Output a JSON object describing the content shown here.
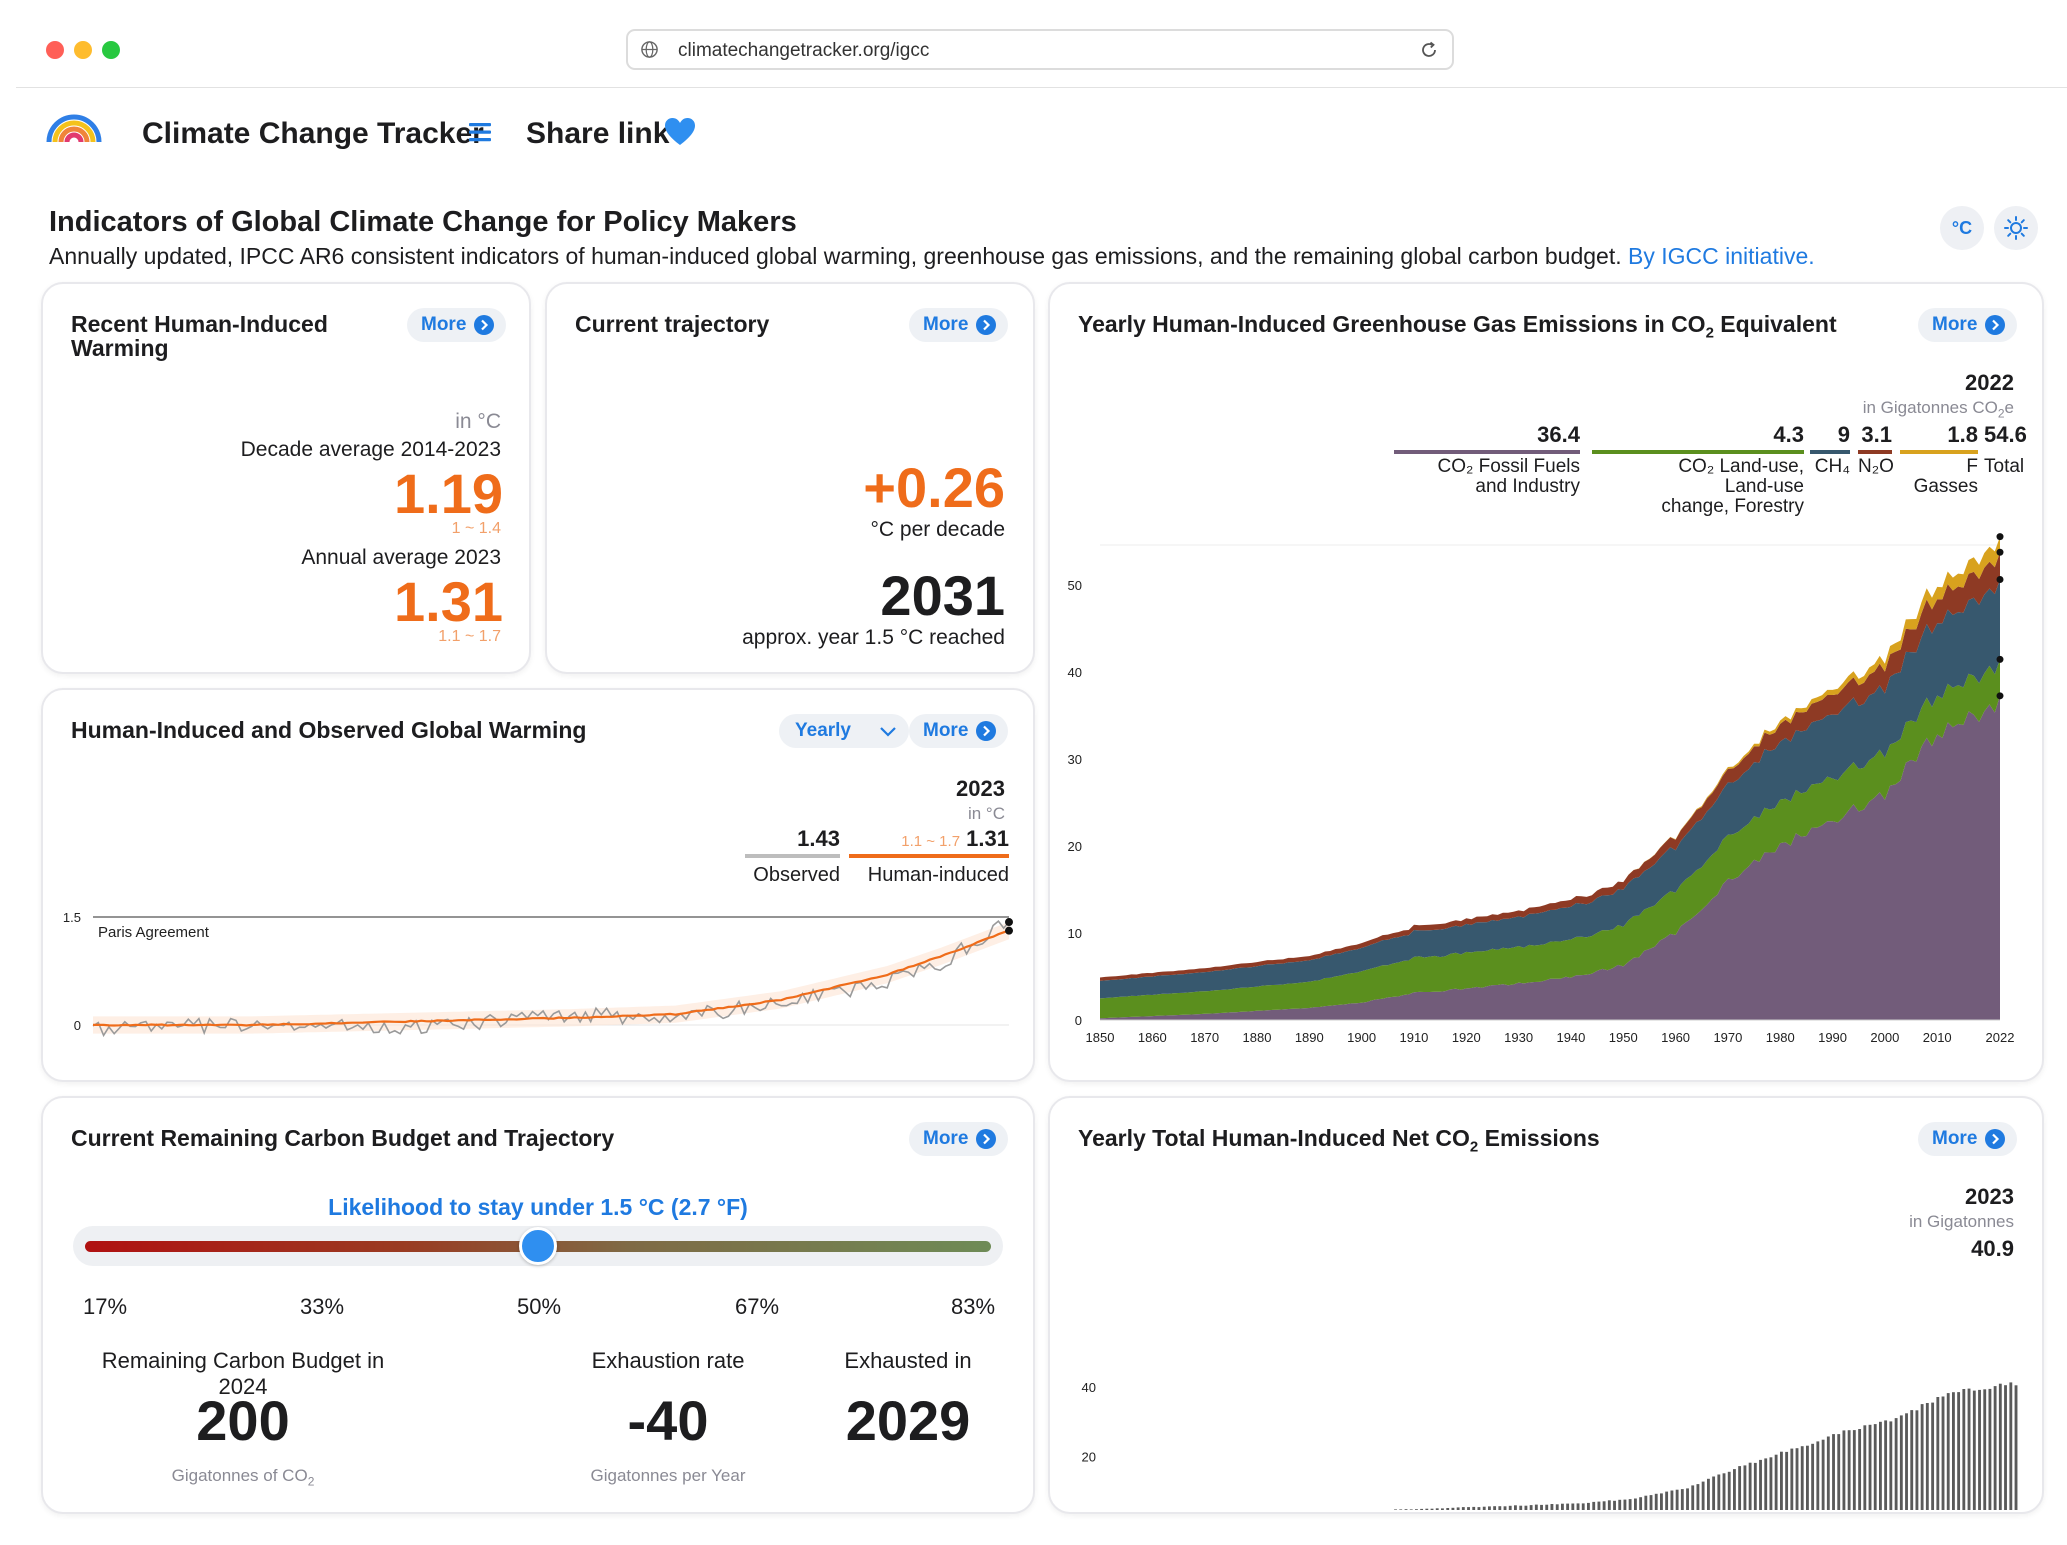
{
  "browser": {
    "url": "climatechangetracker.org/igcc"
  },
  "header": {
    "brand": "Climate Change Tracker",
    "share": "Share link"
  },
  "page": {
    "title": "Indicators of Global Climate Change for Policy Makers",
    "subtitle": "Annually updated, IPCC AR6 consistent indicators of human-induced global warming, greenhouse gas emissions, and the remaining global carbon budget.",
    "link": "By IGCC initiative.",
    "unit_toggle": "°C"
  },
  "common": {
    "more": "More"
  },
  "recent_warming": {
    "title_line1": "Recent Human-Induced",
    "title_line2": "Warming",
    "unit": "in °C",
    "decade_label": "Decade average 2014-2023",
    "decade_value": "1.19",
    "decade_range": "1 ~ 1.4",
    "annual_label": "Annual average 2023",
    "annual_value": "1.31",
    "annual_range": "1.1 ~ 1.7"
  },
  "trajectory": {
    "title": "Current trajectory",
    "rate": "+0.26",
    "rate_unit": "°C per decade",
    "year": "2031",
    "year_label": "approx. year 1.5 °C reached"
  },
  "ghg": {
    "title_pre": "Yearly Human-Induced Greenhouse Gas Emissions in CO",
    "title_sub": "2",
    "title_post": " Equivalent",
    "year": "2022",
    "unit_pre": "in Gigatonnes CO",
    "unit_sub": "2",
    "unit_post": "e",
    "legend": [
      {
        "value": "36.4",
        "l1": "CO₂ Fossil Fuels",
        "l2": "and Industry",
        "l3": "",
        "color": "#725c7a"
      },
      {
        "value": "4.3",
        "l1": "CO₂ Land-use,",
        "l2": "Land-use",
        "l3": "change, Forestry",
        "color": "#5b8f1e"
      },
      {
        "value": "9",
        "l1": "CH₄",
        "l2": "",
        "l3": "",
        "color": "#37586e"
      },
      {
        "value": "3.1",
        "l1": "N₂O",
        "l2": "",
        "l3": "",
        "color": "#8e3a24"
      },
      {
        "value": "1.8",
        "l1": "F Gasses",
        "l2": "",
        "l3": "",
        "color": "#d8a21e"
      },
      {
        "value": "54.6",
        "l1": "Total",
        "l2": "",
        "l3": "",
        "color": "#ffffff"
      }
    ]
  },
  "warming": {
    "title": "Human-Induced and Observed Global Warming",
    "select": "Yearly",
    "year": "2023",
    "unit": "in °C",
    "observed_value": "1.43",
    "observed_label": "Observed",
    "human_range": "1.1 ~ 1.7",
    "human_value": "1.31",
    "human_label": "Human-induced",
    "paris": "Paris Agreement"
  },
  "budget": {
    "title": "Current Remaining Carbon Budget and Trajectory",
    "likelihood": "Likelihood to stay under 1.5 °C (2.7 °F)",
    "slider_value": 0.5,
    "ticks": [
      "17%",
      "33%",
      "50%",
      "67%",
      "83%"
    ],
    "remaining_label": "Remaining Carbon Budget in 2024",
    "remaining_value": "200",
    "remaining_unit_pre": "Gigatonnes of CO",
    "remaining_unit_sub": "2",
    "rate_label": "Exhaustion rate",
    "rate_value": "-40",
    "rate_unit": "Gigatonnes per Year",
    "exhausted_label": "Exhausted in",
    "exhausted_value": "2029"
  },
  "co2": {
    "title_pre": "Yearly Total Human-Induced Net CO",
    "title_sub": "2",
    "title_post": " Emissions",
    "year": "2023",
    "unit": "in Gigatonnes",
    "value": "40.9"
  },
  "chart_data": [
    {
      "type": "area",
      "x_start": 1850,
      "x_end": 2022,
      "xticks": [
        1850,
        1860,
        1870,
        1880,
        1890,
        1900,
        1910,
        1920,
        1930,
        1940,
        1950,
        1960,
        1970,
        1980,
        1990,
        2000,
        2010,
        2022
      ],
      "yticks": [
        0,
        10,
        20,
        30,
        40,
        50
      ],
      "ylim": [
        0,
        55
      ],
      "anchors_years": [
        1850,
        1870,
        1890,
        1900,
        1910,
        1920,
        1930,
        1940,
        1950,
        1960,
        1970,
        1980,
        1990,
        2000,
        2010,
        2022
      ],
      "series": [
        {
          "name": "CO₂ Fossil Fuels and Industry",
          "color": "#725c7a",
          "values": [
            0.2,
            0.7,
            1.4,
            2.0,
            3.1,
            3.6,
            4.2,
            4.9,
            6.3,
            10.0,
            16.0,
            20.0,
            23.0,
            26.0,
            33.0,
            36.4
          ]
        },
        {
          "name": "CO₂ Land-use, Land-use change, Forestry",
          "color": "#5b8f1e",
          "values": [
            2.3,
            2.6,
            3.0,
            3.6,
            4.0,
            4.1,
            4.2,
            4.3,
            4.6,
            4.9,
            5.1,
            5.0,
            5.0,
            4.8,
            4.5,
            4.3
          ]
        },
        {
          "name": "CH₄",
          "color": "#37586e",
          "values": [
            2.0,
            2.2,
            2.5,
            2.7,
            3.0,
            3.2,
            3.5,
            3.8,
            4.2,
            5.0,
            6.0,
            6.8,
            7.3,
            7.6,
            8.4,
            9.0
          ]
        },
        {
          "name": "N₂O",
          "color": "#8e3a24",
          "values": [
            0.4,
            0.45,
            0.5,
            0.55,
            0.6,
            0.65,
            0.7,
            0.8,
            0.9,
            1.2,
            1.6,
            2.0,
            2.3,
            2.5,
            2.8,
            3.1
          ]
        },
        {
          "name": "F Gasses",
          "color": "#d8a21e",
          "values": [
            0,
            0,
            0,
            0,
            0,
            0,
            0,
            0,
            0,
            0.05,
            0.2,
            0.4,
            0.6,
            0.9,
            1.4,
            1.8
          ]
        }
      ]
    },
    {
      "type": "line",
      "x_start": 1850,
      "x_end": 2023,
      "yticks": [
        0,
        1.5
      ],
      "ylim": [
        -0.3,
        1.6
      ],
      "anchors_years": [
        1850,
        1880,
        1910,
        1940,
        1960,
        1980,
        2000,
        2010,
        2023
      ],
      "series": [
        {
          "name": "Observed",
          "color": "#9a9a9a",
          "values": [
            -0.05,
            0.0,
            -0.05,
            0.15,
            0.1,
            0.3,
            0.6,
            0.85,
            1.43
          ]
        },
        {
          "name": "Human-induced",
          "color": "#ef6c1a",
          "values": [
            0.0,
            0.0,
            0.05,
            0.1,
            0.15,
            0.35,
            0.7,
            0.95,
            1.31
          ]
        }
      ]
    },
    {
      "type": "bar",
      "x_start": 1850,
      "x_end": 2023,
      "xticks": [
        1850,
        1860,
        1870,
        1880,
        1890,
        1900,
        1910,
        1920,
        1930,
        1940,
        1950,
        1960,
        1970,
        1980,
        1990,
        2000,
        2010,
        2023
      ],
      "yticks": [
        0,
        20,
        40
      ],
      "ylim": [
        0,
        45
      ],
      "anchors_years": [
        1850,
        1880,
        1900,
        1920,
        1940,
        1950,
        1960,
        1970,
        1980,
        1990,
        2000,
        2010,
        2023
      ],
      "series": [
        {
          "name": "Net CO₂",
          "color": "#5a5a5a",
          "values": [
            3.0,
            3.3,
            4.5,
            5.5,
            6.5,
            8.0,
            11.0,
            17.0,
            22.0,
            27.0,
            31.0,
            38.0,
            40.9
          ]
        }
      ]
    }
  ]
}
